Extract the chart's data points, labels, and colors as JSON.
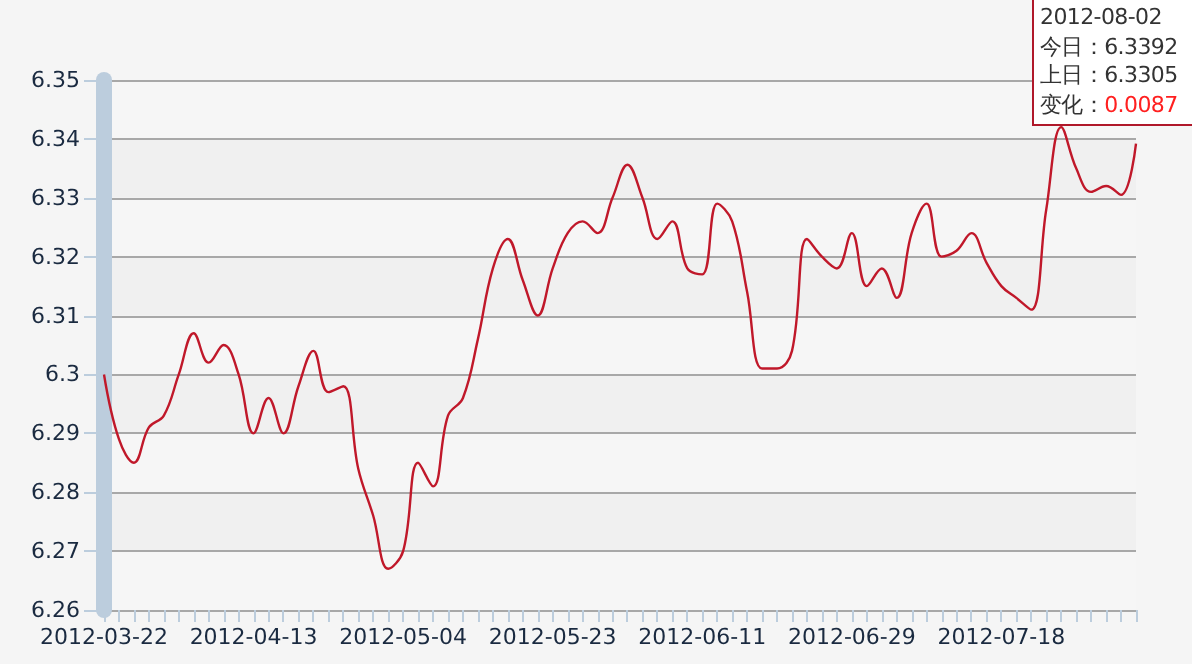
{
  "chart_data": {
    "type": "line",
    "categories": [
      "2012-03-22",
      null,
      null,
      null,
      null,
      null,
      null,
      null,
      null,
      null,
      "2012-04-13",
      null,
      null,
      null,
      null,
      null,
      null,
      null,
      null,
      null,
      "2012-05-04",
      null,
      null,
      null,
      null,
      null,
      null,
      null,
      null,
      null,
      "2012-05-23",
      null,
      null,
      null,
      null,
      null,
      null,
      null,
      null,
      null,
      "2012-06-11",
      null,
      null,
      null,
      null,
      null,
      null,
      null,
      null,
      null,
      "2012-06-29",
      null,
      null,
      null,
      null,
      null,
      null,
      null,
      null,
      null,
      "2012-07-18",
      null,
      null,
      null,
      null,
      null,
      null,
      null,
      null,
      null
    ],
    "series": [
      {
        "color": "#c0182a",
        "values": [
          6.3,
          6.289,
          6.285,
          6.291,
          6.293,
          6.3,
          6.307,
          6.302,
          6.305,
          6.3,
          6.29,
          6.296,
          6.29,
          6.298,
          6.304,
          6.297,
          6.298,
          6.284,
          6.276,
          6.267,
          6.27,
          6.285,
          6.281,
          6.293,
          6.296,
          6.306,
          6.318,
          6.323,
          6.316,
          6.31,
          6.318,
          6.324,
          6.326,
          6.324,
          6.33,
          6.3356,
          6.33,
          6.323,
          6.326,
          6.318,
          6.317,
          6.329,
          6.326,
          6.314,
          6.301,
          6.301,
          6.304,
          6.323,
          6.32,
          6.318,
          6.324,
          6.315,
          6.318,
          6.313,
          6.324,
          6.329,
          6.32,
          6.321,
          6.324,
          6.319,
          6.315,
          6.313,
          6.311,
          6.328,
          6.342,
          6.335,
          6.331,
          6.332,
          6.3305,
          6.3392
        ]
      }
    ],
    "ylim": [
      6.26,
      6.35
    ],
    "yticks": [
      6.26,
      6.27,
      6.28,
      6.29,
      6.3,
      6.31,
      6.32,
      6.33,
      6.34,
      6.35
    ],
    "grid": "y",
    "marker": "none",
    "line_style": "solid",
    "annotations": [
      "2012-08-02",
      "今日：6.3392",
      "上日：6.3305",
      "变化：0.0087"
    ]
  }
}
